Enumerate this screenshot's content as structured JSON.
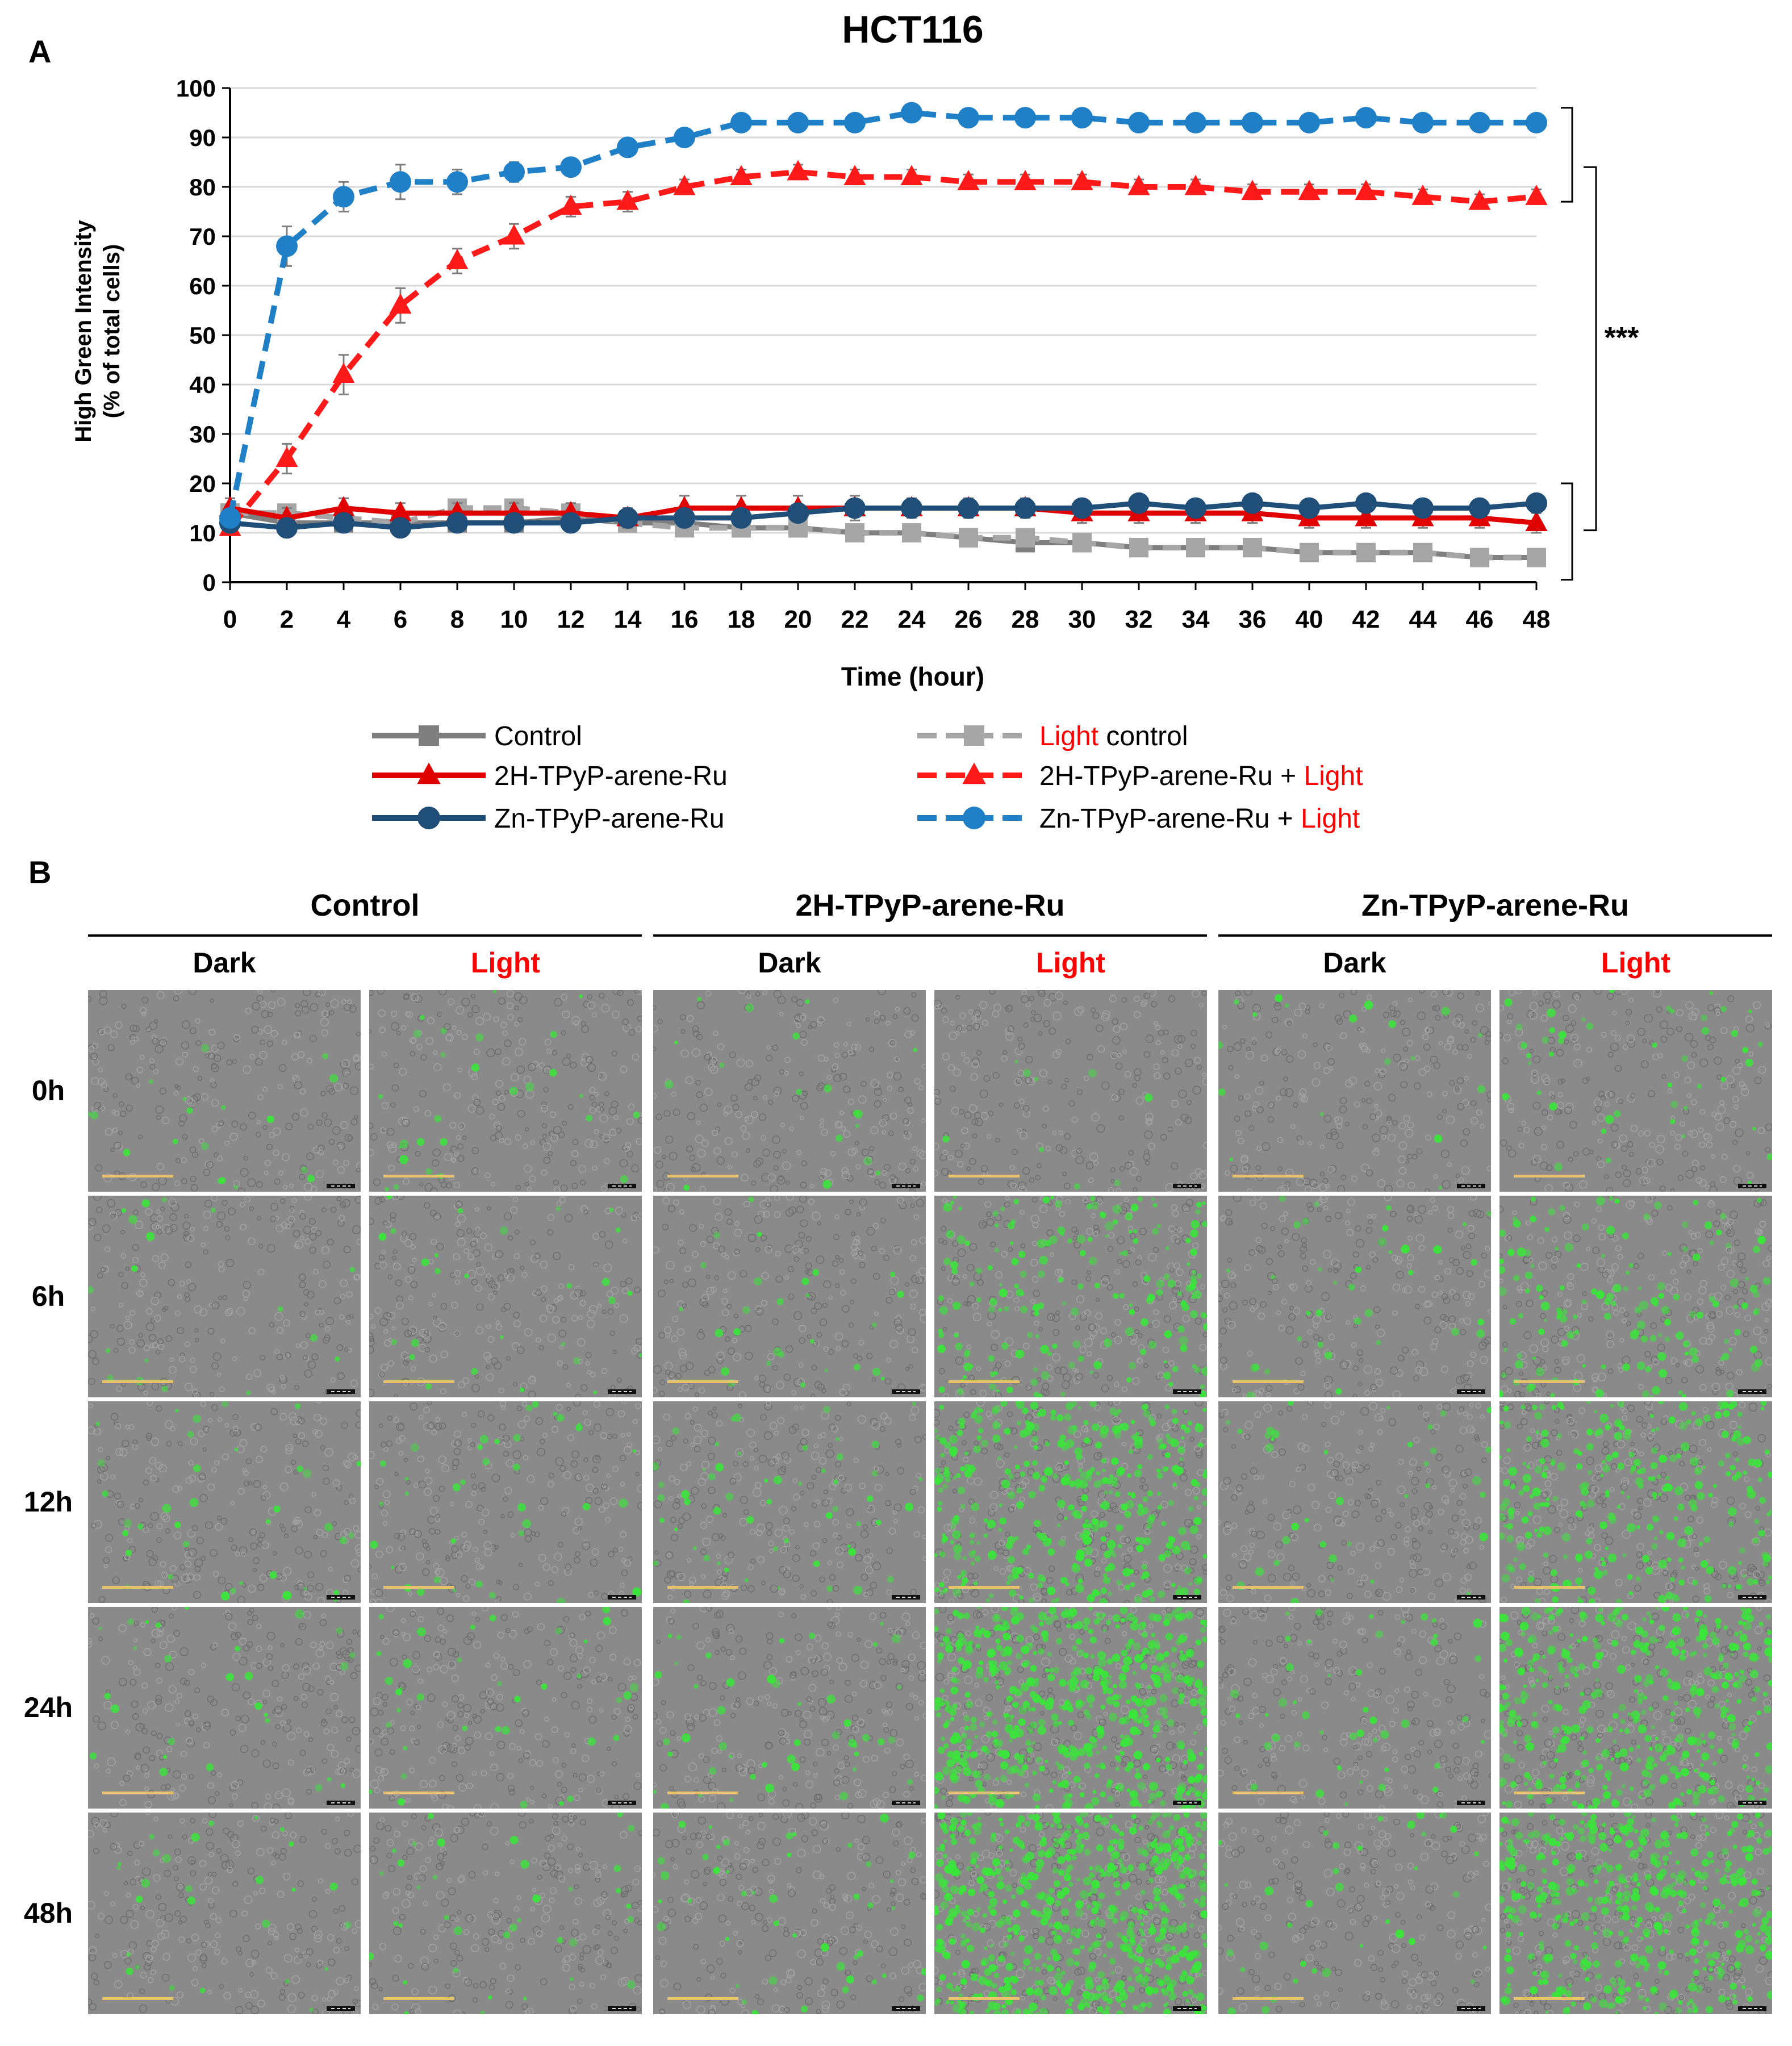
{
  "panel_a_letter": "A",
  "panel_b_letter": "B",
  "chart_data": {
    "type": "line",
    "title": "HCT116",
    "ylabel_line1": "High Green Intensity",
    "ylabel_line2": "(% of total cells)",
    "xlabel": "Time (hour)",
    "categories": [
      "0",
      "2",
      "4",
      "6",
      "8",
      "10",
      "12",
      "14",
      "16",
      "18",
      "20",
      "22",
      "24",
      "26",
      "28",
      "30",
      "32",
      "34",
      "36",
      "40",
      "42",
      "44",
      "46",
      "48"
    ],
    "yticks": [
      0,
      10,
      20,
      30,
      40,
      50,
      60,
      70,
      80,
      90,
      100
    ],
    "ylim": [
      0,
      100
    ],
    "grid": true,
    "significance": "***",
    "series": [
      {
        "name": "Control",
        "style": "solid",
        "marker": "square",
        "color": "#7f7f7f",
        "values": [
          14,
          12,
          12,
          12,
          12,
          12,
          13,
          12,
          12,
          11,
          11,
          10,
          10,
          9,
          8,
          8,
          7,
          7,
          7,
          6,
          6,
          6,
          5,
          5
        ],
        "errors": [
          1.5,
          1.5,
          1.5,
          1.5,
          1.5,
          1.5,
          1.5,
          1.5,
          1.5,
          1.5,
          1.5,
          1.5,
          1.5,
          1.5,
          1.5,
          1.5,
          1.5,
          1.5,
          1.5,
          1.5,
          1.5,
          1.5,
          1.5,
          1.5
        ]
      },
      {
        "name": "Light control",
        "name_red": "Light",
        "name_rest": " control",
        "style": "dashed",
        "marker": "square",
        "color": "#a6a6a6",
        "values": [
          14,
          14,
          13,
          12,
          15,
          15,
          14,
          12,
          11,
          11,
          11,
          10,
          10,
          9,
          9,
          8,
          7,
          7,
          7,
          6,
          6,
          6,
          5,
          5
        ],
        "errors": [
          1.5,
          1.5,
          1.5,
          1.5,
          1.5,
          1.5,
          1.5,
          1.5,
          1.5,
          1.5,
          1.5,
          1.5,
          1.5,
          1.5,
          1.5,
          1.5,
          1.5,
          1.5,
          1.5,
          1.5,
          1.5,
          1.5,
          1.5,
          1.5
        ]
      },
      {
        "name": "2H-TPyP-arene-Ru",
        "style": "solid",
        "marker": "triangle",
        "color": "#e00000",
        "values": [
          15,
          13,
          15,
          14,
          14,
          14,
          14,
          13,
          15,
          15,
          15,
          15,
          15,
          15,
          15,
          14,
          14,
          14,
          14,
          13,
          13,
          13,
          13,
          12
        ],
        "errors": [
          2,
          2,
          2,
          2,
          2,
          2,
          2,
          2,
          2.5,
          2.5,
          2.5,
          2.5,
          2,
          2,
          2,
          2,
          2,
          2,
          2,
          2,
          2,
          2,
          2,
          2
        ]
      },
      {
        "name": "2H-TPyP-arene-Ru + Light",
        "name_black": "2H-TPyP-arene-Ru + ",
        "name_red": "Light",
        "style": "dashed",
        "marker": "triangle",
        "color": "#ff1a1a",
        "values": [
          11,
          25,
          42,
          56,
          65,
          70,
          76,
          77,
          80,
          82,
          83,
          82,
          82,
          81,
          81,
          81,
          80,
          80,
          79,
          79,
          79,
          78,
          77,
          78
        ],
        "errors": [
          1,
          3,
          4,
          3.5,
          2.5,
          2.5,
          2,
          2,
          1.5,
          1.5,
          1.5,
          1.5,
          1.5,
          1.5,
          1.5,
          1.5,
          1.5,
          1.5,
          1.5,
          1.5,
          1.5,
          1.5,
          1.5,
          1.5
        ]
      },
      {
        "name": "Zn-TPyP-arene-Ru",
        "style": "solid",
        "marker": "circle",
        "color": "#1f4e79",
        "values": [
          12,
          11,
          12,
          11,
          12,
          12,
          12,
          13,
          13,
          13,
          14,
          15,
          15,
          15,
          15,
          15,
          16,
          15,
          16,
          15,
          16,
          15,
          15,
          16
        ],
        "errors": [
          1.5,
          1.5,
          1.5,
          1.5,
          1.5,
          1.5,
          1.5,
          1.5,
          1.5,
          1.5,
          1.5,
          1.5,
          1.5,
          1.5,
          1.5,
          1.5,
          1.5,
          1.5,
          1.5,
          1.5,
          1.5,
          1.5,
          1.5,
          1.5
        ]
      },
      {
        "name": "Zn-TPyP-arene-Ru + Light",
        "name_black": "Zn-TPyP-arene-Ru + ",
        "name_red": "Light",
        "style": "dashed",
        "marker": "circle",
        "color": "#1f80c7",
        "values": [
          13,
          68,
          78,
          81,
          81,
          83,
          84,
          88,
          90,
          93,
          93,
          93,
          95,
          94,
          94,
          94,
          93,
          93,
          93,
          93,
          94,
          93,
          93,
          93
        ],
        "errors": [
          1,
          4,
          3,
          3.5,
          2.5,
          2,
          1.5,
          1.5,
          1,
          1,
          1,
          1,
          1,
          1,
          1,
          1,
          1,
          1,
          1,
          1,
          1,
          1,
          1,
          1
        ]
      }
    ]
  },
  "panel_b": {
    "groups": [
      "Control",
      "2H-TPyP-arene-Ru",
      "Zn-TPyP-arene-Ru"
    ],
    "conditions": [
      "Dark",
      "Light",
      "Dark",
      "Light",
      "Dark",
      "Light"
    ],
    "timepoints": [
      "0h",
      "6h",
      "12h",
      "24h",
      "48h"
    ]
  },
  "colors": {
    "light_red": "#ff0000",
    "scale_bar": "#e6c36a",
    "green_cells": "#38e838"
  }
}
